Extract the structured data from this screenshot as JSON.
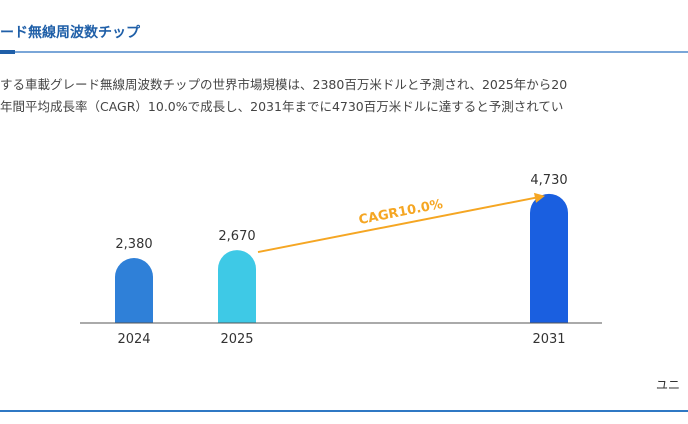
{
  "header": {
    "title": "ード無線周波数チップ"
  },
  "description": {
    "line1": "する車載グレード無線周波数チップの世界市場規模は、2380百万米ドルと予測され、2025年から20",
    "line2": "年間平均成長率（CAGR）10.0%で成長し、2031年までに4730百万米ドルに達すると予測されてい"
  },
  "footer": {
    "unit_label": "ユニ"
  },
  "chart_data": {
    "type": "bar",
    "categories": [
      "2024",
      "2025",
      "2031"
    ],
    "values": [
      2380,
      2670,
      4730
    ],
    "value_labels": [
      "2,380",
      "2,670",
      "4,730"
    ],
    "colors": [
      "#2f80d8",
      "#3ec9e6",
      "#1a5fe0"
    ],
    "annotation": {
      "text": "CAGR10.0%",
      "from": "2025",
      "to": "2031",
      "color": "#f5a623"
    },
    "ylim": [
      0,
      5000
    ]
  }
}
